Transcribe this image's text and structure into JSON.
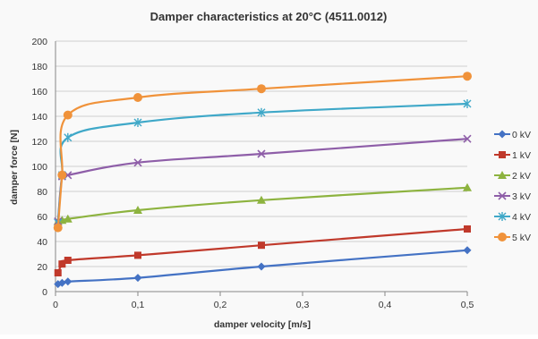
{
  "chart_data": {
    "type": "line",
    "title": "Damper characteristics at 20°C (4511.0012)",
    "xlabel": "damper velocity [m/s]",
    "ylabel": "damper force [N]",
    "xlim": [
      0,
      0.5
    ],
    "ylim": [
      0,
      200
    ],
    "x_ticks": [
      "0",
      "0,1",
      "0,2",
      "0,3",
      "0,4",
      "0,5"
    ],
    "y_ticks": [
      "0",
      "20",
      "40",
      "60",
      "80",
      "100",
      "120",
      "140",
      "160",
      "180",
      "200"
    ],
    "x_tick_values": [
      0,
      0.1,
      0.2,
      0.3,
      0.4,
      0.5
    ],
    "y_tick_values": [
      0,
      20,
      40,
      60,
      80,
      100,
      120,
      140,
      160,
      180,
      200
    ],
    "grid": "horizontal",
    "legend": "right",
    "series": [
      {
        "name": "0 kV",
        "color": "#4472c4",
        "marker": "diamond",
        "x": [
          0.003,
          0.008,
          0.015,
          0.1,
          0.25,
          0.5
        ],
        "y": [
          6,
          7,
          8,
          11,
          20,
          33
        ]
      },
      {
        "name": "1 kV",
        "color": "#c0392b",
        "marker": "square",
        "x": [
          0.003,
          0.008,
          0.015,
          0.1,
          0.25,
          0.5
        ],
        "y": [
          15,
          22,
          25,
          29,
          37,
          50
        ]
      },
      {
        "name": "2 kV",
        "color": "#8db33f",
        "marker": "triangle",
        "x": [
          0.003,
          0.008,
          0.015,
          0.1,
          0.25,
          0.5
        ],
        "y": [
          56,
          57,
          58,
          65,
          73,
          83
        ]
      },
      {
        "name": "3 kV",
        "color": "#8e5ea8",
        "marker": "x",
        "x": [
          0.003,
          0.008,
          0.015,
          0.1,
          0.25,
          0.5
        ],
        "y": [
          56,
          92,
          93,
          103,
          110,
          122
        ]
      },
      {
        "name": "4 kV",
        "color": "#3fa8c8",
        "marker": "star",
        "x": [
          0.003,
          0.008,
          0.015,
          0.1,
          0.25,
          0.5
        ],
        "y": [
          55,
          93,
          123,
          135,
          143,
          150
        ]
      },
      {
        "name": "5 kV",
        "color": "#f0923a",
        "marker": "circle",
        "x": [
          0.003,
          0.008,
          0.015,
          0.1,
          0.25,
          0.5
        ],
        "y": [
          51,
          93,
          141,
          155,
          162,
          172
        ]
      }
    ]
  }
}
